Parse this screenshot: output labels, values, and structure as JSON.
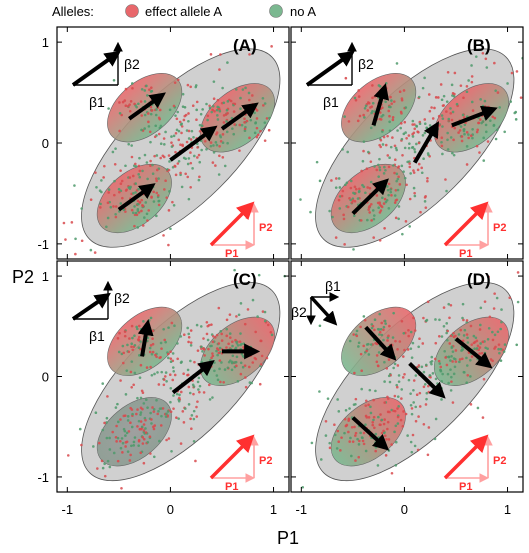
{
  "legend": {
    "title": "Alleles:",
    "entries": [
      {
        "label": "effect allele A",
        "color": "#e8676b"
      },
      {
        "label": "no A",
        "color": "#7bb890"
      }
    ]
  },
  "axes": {
    "xlabel": "P1",
    "ylabel": "P2",
    "x_ticks": [
      "-1",
      "0",
      "1"
    ],
    "y_ticks": [
      "1",
      "0",
      "-1"
    ],
    "xlim": [
      -1.1,
      1.15
    ],
    "ylim": [
      -1.15,
      1.15
    ]
  },
  "colors": {
    "beta_arrow": "#000000",
    "p_arrow": "#ff3030",
    "outer_ellipse": "#c8c8c8",
    "red": "#e8676b",
    "green": "#7bb890"
  },
  "inset_labels": {
    "beta1": "β1",
    "beta2": "β2",
    "p1": "P1",
    "p2": "P2"
  },
  "chart_data": [
    {
      "type": "scatter",
      "panel": "(A)",
      "clusters": [
        {
          "center": [
            -0.25,
            0.35
          ],
          "genotype": "red-top/green-bottom",
          "effect_arrow": [
            0.3,
            0.22
          ]
        },
        {
          "center": [
            0.65,
            0.25
          ],
          "genotype": "red-top/green-bottom",
          "effect_arrow": [
            0.3,
            0.22
          ]
        },
        {
          "center": [
            -0.35,
            -0.55
          ],
          "genotype": "red-top/green-bottom",
          "effect_arrow": [
            0.3,
            0.22
          ]
        }
      ],
      "center_arrow": [
        0.4,
        0.3
      ],
      "inset_beta": {
        "beta1": [
          0.45,
          0.33
        ],
        "beta2": [
          0,
          0.35
        ]
      }
    },
    {
      "type": "scatter",
      "panel": "(B)",
      "clusters": [
        {
          "center": [
            -0.25,
            0.35
          ],
          "genotype": "red-top/green-bottom",
          "effect_arrow": [
            0.1,
            0.35
          ]
        },
        {
          "center": [
            0.65,
            0.25
          ],
          "genotype": "red-top/green-bottom",
          "effect_arrow": [
            0.38,
            0.15
          ]
        },
        {
          "center": [
            -0.35,
            -0.55
          ],
          "genotype": "red-top/green-bottom",
          "effect_arrow": [
            0.3,
            0.3
          ]
        }
      ],
      "center_arrow": [
        0.2,
        0.35
      ],
      "inset_beta": {
        "beta1": [
          0.45,
          0.33
        ],
        "beta2": [
          0,
          0.35
        ]
      }
    },
    {
      "type": "scatter",
      "panel": "(C)",
      "clusters": [
        {
          "center": [
            -0.25,
            0.35
          ],
          "genotype": "red-top/green-bottom",
          "effect_arrow": [
            0.05,
            0.3
          ]
        },
        {
          "center": [
            0.65,
            0.25
          ],
          "genotype": "green-left/red-right",
          "effect_arrow": [
            0.3,
            0
          ]
        },
        {
          "center": [
            -0.35,
            -0.55
          ],
          "genotype": "grey",
          "effect_arrow": null
        }
      ],
      "center_arrow": [
        0.35,
        0.28
      ],
      "inset_beta": {
        "beta1": [
          0.35,
          0.25
        ],
        "beta2": [
          0,
          0.3
        ]
      }
    },
    {
      "type": "scatter",
      "panel": "(D)",
      "clusters": [
        {
          "center": [
            -0.25,
            0.35
          ],
          "genotype": "green-left/red-right",
          "effect_arrow": [
            0.25,
            -0.28
          ]
        },
        {
          "center": [
            0.65,
            0.25
          ],
          "genotype": "green-left/red-right",
          "effect_arrow": [
            0.3,
            -0.25
          ]
        },
        {
          "center": [
            -0.35,
            -0.55
          ],
          "genotype": "green-left/red-right",
          "effect_arrow": [
            0.3,
            -0.28
          ]
        }
      ],
      "center_arrow": [
        0.3,
        -0.3
      ],
      "inset_beta": {
        "beta1": [
          0.4,
          0
        ],
        "beta2": [
          0.3,
          -0.35
        ]
      }
    }
  ]
}
